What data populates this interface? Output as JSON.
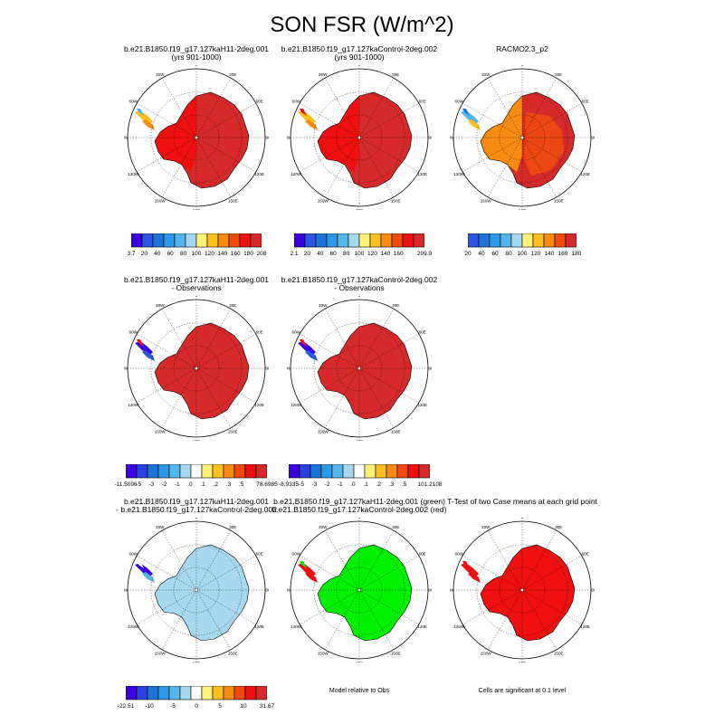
{
  "title": "SON FSR (W/m^2)",
  "lon_labels": [
    "0",
    "30E",
    "60E",
    "90E",
    "120E",
    "150E",
    "180",
    "150W",
    "120W",
    "90W",
    "60W",
    "30W"
  ],
  "colors": {
    "dark_red": "#d62a2a",
    "red": "#ee1010",
    "orange": "#f78a10",
    "amber": "#fbbf20",
    "yellow": "#fff07a",
    "light_blue": "#a6d8f0",
    "sky": "#55b6ec",
    "blue": "#1e74d6",
    "violet": "#3a00e0",
    "green": "#00f000"
  },
  "palettes": {
    "abs": [
      "#3a00e0",
      "#2c55e0",
      "#1e74d6",
      "#2d99e6",
      "#55b6ec",
      "#a6d8f0",
      "#fff07a",
      "#fbbf20",
      "#f78a10",
      "#ee4a10",
      "#ee1010",
      "#d62a2a"
    ],
    "racmo": [
      "#2c55e0",
      "#1e74d6",
      "#2d99e6",
      "#55b6ec",
      "#a6d8f0",
      "#fff07a",
      "#fbbf20",
      "#f78a10",
      "#ee4a10",
      "#d62a2a"
    ],
    "diff": [
      "#3a00e0",
      "#2c40e0",
      "#1e74d6",
      "#2d99e6",
      "#55b6ec",
      "#a6d8f0",
      "#ffffff",
      "#fff07a",
      "#fbbf20",
      "#f78a10",
      "#ee4a10",
      "#ee1010",
      "#d62a2a"
    ]
  },
  "panels": [
    {
      "id": "case1",
      "row": 0,
      "col": 0,
      "title_lines": [
        "b.e21.B1850.f19_g17.127kaH11-2deg.001",
        "(yrs 901-1000)"
      ],
      "fill": "#d62a2a",
      "west_fill": "#ee1010",
      "peninsula": [
        "#fbbf20",
        "#f78a10",
        "#55b6ec"
      ],
      "colorbar": {
        "palette": "abs",
        "labels": [
          "3.7",
          "20",
          "40",
          "60",
          "80",
          "100",
          "120",
          "140",
          "160",
          "180",
          "208"
        ]
      }
    },
    {
      "id": "case2",
      "row": 0,
      "col": 1,
      "title_lines": [
        "b.e21.B1850.f19_g17.127kaControl-2deg.002",
        "(yrs 901-1000)"
      ],
      "fill": "#d62a2a",
      "west_fill": "#ee1010",
      "peninsula": [
        "#fbbf20",
        "#f78a10",
        "#ee1010"
      ],
      "colorbar": {
        "palette": "abs",
        "labels": [
          "2.1",
          "20",
          "40",
          "60",
          "80",
          "100",
          "120",
          "140",
          "160",
          "",
          "209.9"
        ]
      }
    },
    {
      "id": "racmo",
      "row": 0,
      "col": 2,
      "title_lines": [
        "RACMO2.3_p2"
      ],
      "fill": "#d62a2a",
      "west_fill": "#f78a10",
      "inner_fill": "#ee4a10",
      "peninsula": [
        "#55b6ec",
        "#fbbf20",
        "#1e74d6"
      ],
      "colorbar": {
        "palette": "racmo",
        "labels": [
          "20",
          "40",
          "60",
          "80",
          "100",
          "120",
          "140",
          "160",
          "180"
        ]
      }
    },
    {
      "id": "case1-obs",
      "row": 1,
      "col": 0,
      "title_lines": [
        "b.e21.B1850.f19_g17.127kaH11-2deg.001",
        "- Observations"
      ],
      "fill": "#d62a2a",
      "west_fill": "#d62a2a",
      "peninsula": [
        "#3a00e0",
        "#2c55e0",
        "#ee1010"
      ],
      "colorbar": {
        "palette": "diff",
        "labels": [
          "-11.5096",
          "-5",
          "-3",
          "-2",
          "-1",
          ".0",
          ".1",
          ".2",
          ".3",
          ".5",
          "",
          "78.6985"
        ]
      }
    },
    {
      "id": "case2-obs",
      "row": 1,
      "col": 1,
      "title_lines": [
        "b.e21.B1850.f19_g17.127kaControl-2deg.002",
        "- Observations"
      ],
      "fill": "#d62a2a",
      "west_fill": "#d62a2a",
      "peninsula": [
        "#3a00e0",
        "#2c55e0",
        "#ee1010"
      ],
      "colorbar": {
        "palette": "diff",
        "labels": [
          "-8.9335",
          "-5",
          "-3",
          "-2",
          "-1",
          ".0",
          ".1",
          ".2",
          ".3",
          ".5",
          "",
          "101.2108"
        ]
      }
    },
    {
      "id": "case-diff",
      "row": 2,
      "col": 0,
      "title_lines": [
        "b.e21.B1850.f19_g17.127kaH11-2deg.001",
        "- b.e21.B1850.f19_g17.127kaControl-2deg.002"
      ],
      "fill": "#a6d8f0",
      "west_fill": "#a6d8f0",
      "inner_fill": "#a6d8f0",
      "peninsula": [
        "#3a00e0",
        "#55b6ec",
        "#ffffff"
      ],
      "colorbar": {
        "palette": "diff",
        "labels": [
          "-22.51",
          "-10",
          "-5",
          "0",
          "5",
          "10",
          "31.67"
        ]
      }
    },
    {
      "id": "rel-obs",
      "row": 2,
      "col": 1,
      "title_lines": [
        "b.e21.B1850.f19_g17.127kaH11-2deg.001 (green)",
        "b.e21.B1850.f19_g17.127kaControl-2deg.002 (red)"
      ],
      "fill": "#00f000",
      "west_fill": "#00f000",
      "peninsula": [
        "#ee1010",
        "#ee1010",
        "#00f000"
      ],
      "note": "Model relative to Obs"
    },
    {
      "id": "ttest",
      "row": 2,
      "col": 2,
      "title_lines": [
        "T-Test of two Case means at each grid point"
      ],
      "fill": "#ee1010",
      "west_fill": "#ee1010",
      "peninsula": [
        "#ee1010",
        "#ee1010",
        "#ee1010"
      ],
      "note": "Cells are significant at 0.1 level"
    }
  ]
}
